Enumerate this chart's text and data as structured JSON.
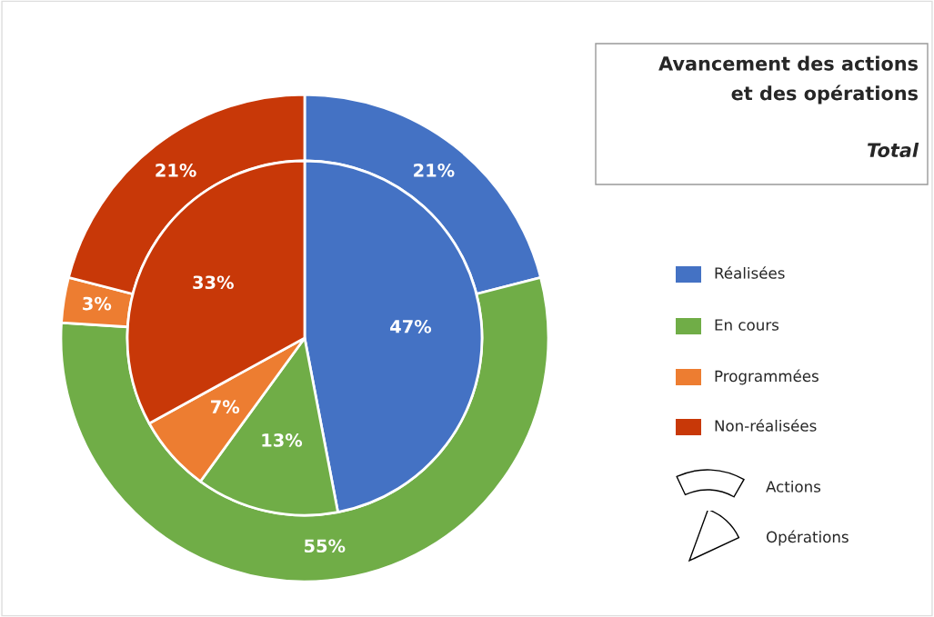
{
  "chart_data": {
    "type": "donut",
    "title": "Avancement des actions\net des opérations",
    "subtitle": "Total",
    "categories": [
      "Réalisées",
      "En cours",
      "Programmées",
      "Non-réalisées"
    ],
    "colors": [
      "#4472c4",
      "#70ad47",
      "#ed7d31",
      "#c83808"
    ],
    "series": [
      {
        "name": "Actions",
        "type": "donut",
        "values": [
          21,
          55,
          3,
          21
        ],
        "value_labels": [
          "21%",
          "55%",
          "3%",
          "21%"
        ]
      },
      {
        "name": "Opérations",
        "type": "pie",
        "values": [
          47,
          13,
          7,
          33
        ],
        "value_labels": [
          "47%",
          "13%",
          "7%",
          "33%"
        ]
      }
    ],
    "legend": "right"
  }
}
